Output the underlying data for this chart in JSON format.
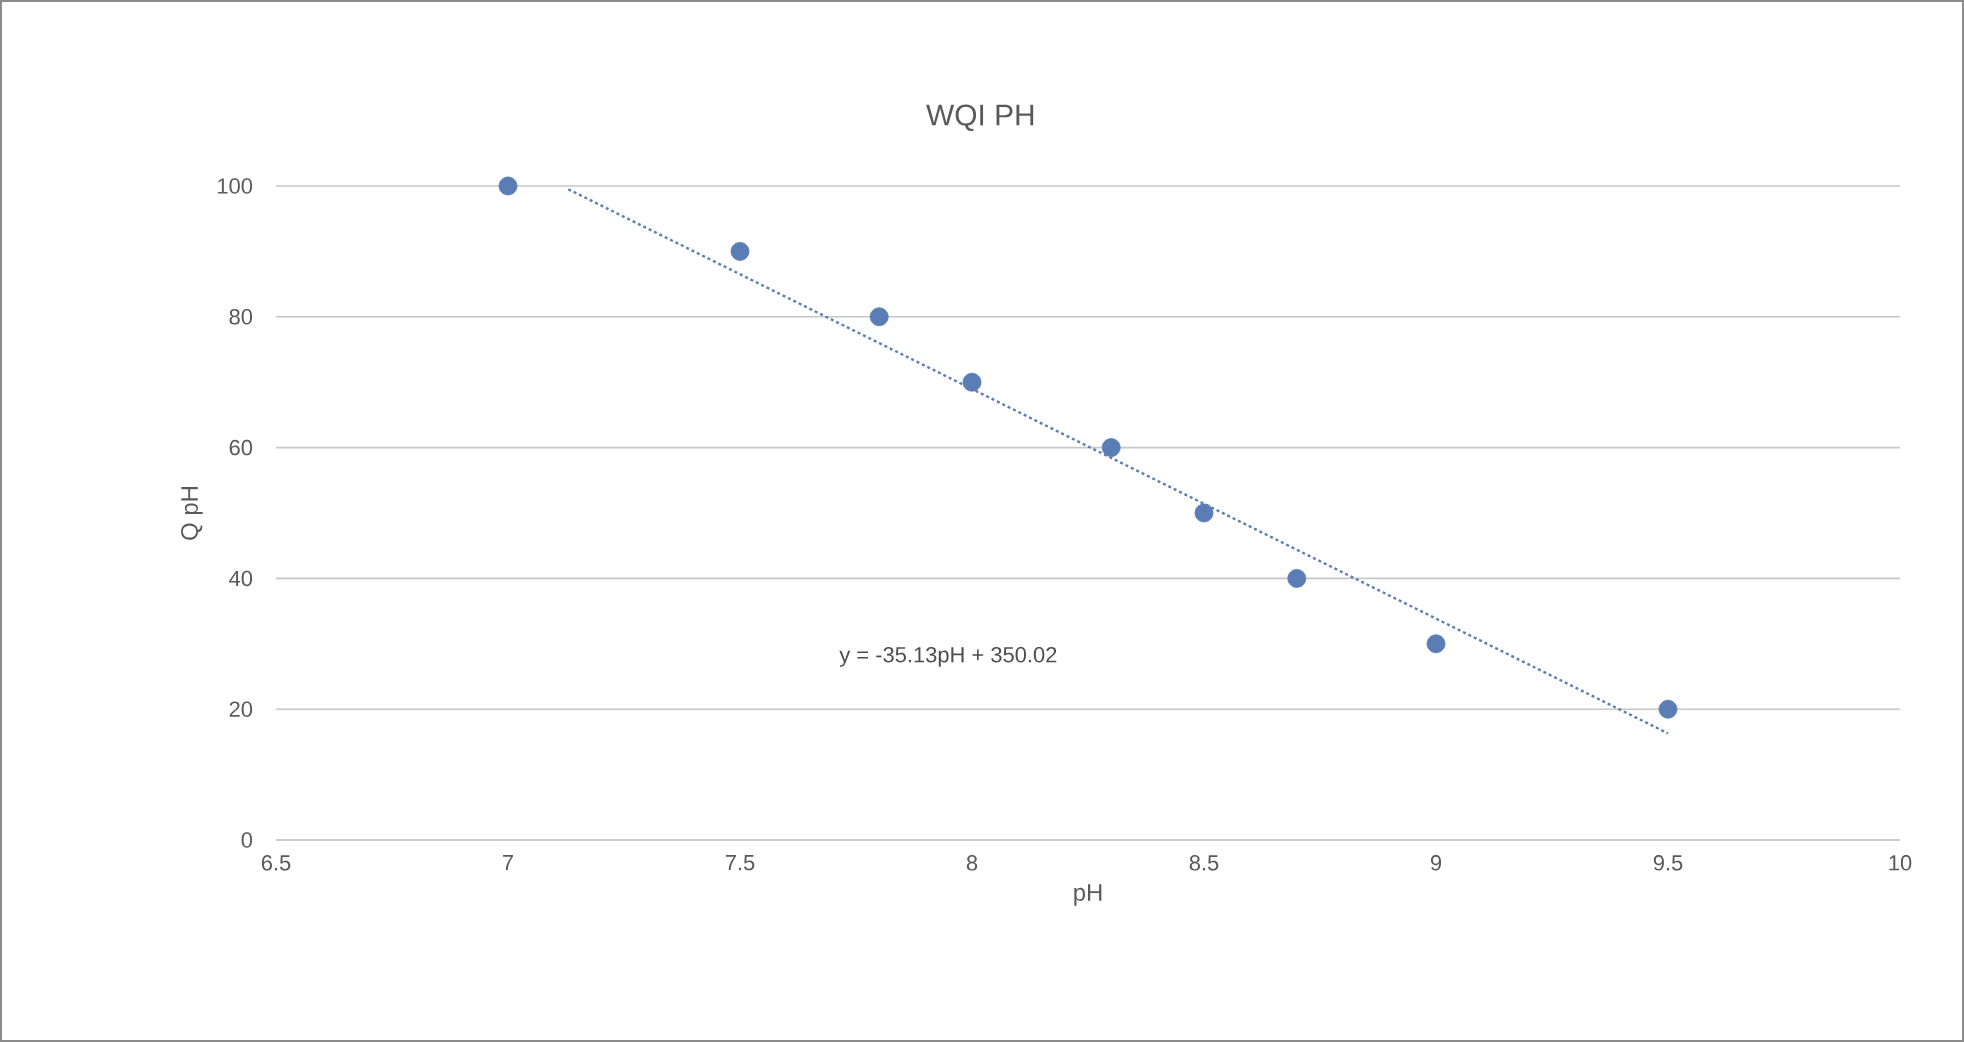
{
  "chart_data": {
    "type": "scatter",
    "title": "WQI PH",
    "xlabel": "pH",
    "ylabel": "Q pH",
    "series": [
      {
        "x": [
          7,
          7.5,
          7.8,
          8,
          8.3,
          8.5,
          8.7,
          9,
          9.5
        ],
        "values": [
          100,
          90,
          80,
          70,
          60,
          50,
          40,
          30,
          20
        ],
        "color": "#5a7db5",
        "marker": "circle"
      },
      {
        "type": "line",
        "x": [
          7.13,
          9.5
        ],
        "values": [
          99.5,
          16.3
        ],
        "color": "#5a7db5",
        "line_style": "dotted",
        "marker": "none"
      }
    ],
    "annotations": [
      "y = -35.13pH + 350.02"
    ],
    "xlim": [
      6.5,
      10
    ],
    "ylim": [
      0,
      100
    ],
    "xticks": [
      6.5,
      7,
      7.5,
      8,
      8.5,
      9,
      9.5,
      10
    ],
    "yticks": [
      0,
      20,
      40,
      60,
      80,
      100
    ],
    "grid": "y"
  }
}
